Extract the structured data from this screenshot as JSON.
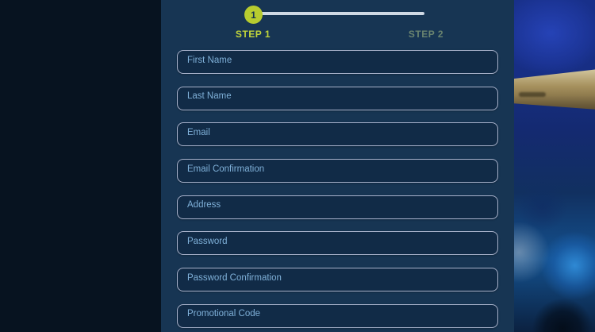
{
  "stepper": {
    "current_step_number": "1",
    "steps": [
      {
        "label": "STEP 1",
        "active": true
      },
      {
        "label": "STEP 2",
        "active": false
      }
    ]
  },
  "form": {
    "fields": [
      {
        "name": "first-name",
        "placeholder": "First Name"
      },
      {
        "name": "last-name",
        "placeholder": "Last Name"
      },
      {
        "name": "email",
        "placeholder": "Email"
      },
      {
        "name": "email-confirmation",
        "placeholder": "Email Confirmation"
      },
      {
        "name": "address",
        "placeholder": "Address"
      },
      {
        "name": "password",
        "placeholder": "Password"
      },
      {
        "name": "password-confirmation",
        "placeholder": "Password Confirmation"
      },
      {
        "name": "promotional-code",
        "placeholder": "Promotional Code"
      }
    ]
  },
  "colors": {
    "accent_green": "#b7cc2f",
    "active_step_text": "#c2d63b",
    "inactive_step_text": "#69836f",
    "form_panel": "#173553",
    "left_panel": "#071320",
    "input_background": "#112b47",
    "input_border": "#a7b1ca",
    "placeholder_text": "#7fb0d8",
    "progress_line": "#cfd9e4"
  }
}
